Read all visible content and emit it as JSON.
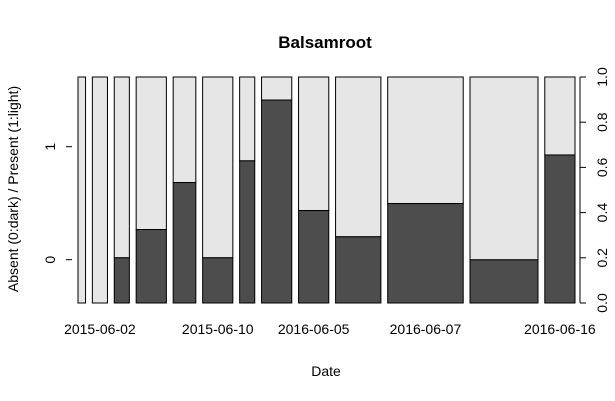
{
  "chart_data": {
    "type": "bar",
    "subtype": "spineplot",
    "title": "Balsamroot",
    "xlabel": "Date",
    "ylabel": "Absent (0:dark) / Present (1:light)",
    "x_tick_labels": [
      "2015-06-02",
      "2015-06-10",
      "2016-06-05",
      "2016-06-07",
      "2016-06-16"
    ],
    "y_left_ticks": [
      "0",
      "1"
    ],
    "y_right_ticks": [
      "0.0",
      "0.2",
      "0.4",
      "0.6",
      "0.8",
      "1.0"
    ],
    "ylim": [
      0,
      1
    ],
    "colors": {
      "absent": "#4d4d4d",
      "present": "#e6e6e6",
      "border": "#000000"
    },
    "bars": [
      {
        "width": 1,
        "absent_fraction": 0.0
      },
      {
        "width": 2,
        "absent_fraction": 0.0
      },
      {
        "width": 2,
        "absent_fraction": 0.2
      },
      {
        "width": 4,
        "absent_fraction": 0.325
      },
      {
        "width": 3,
        "absent_fraction": 0.533
      },
      {
        "width": 4,
        "absent_fraction": 0.2
      },
      {
        "width": 2,
        "absent_fraction": 0.629
      },
      {
        "width": 4,
        "absent_fraction": 0.898
      },
      {
        "width": 4,
        "absent_fraction": 0.409
      },
      {
        "width": 6,
        "absent_fraction": 0.293
      },
      {
        "width": 10,
        "absent_fraction": 0.44
      },
      {
        "width": 9,
        "absent_fraction": 0.191
      },
      {
        "width": 4,
        "absent_fraction": 0.655
      }
    ],
    "tick_label_bars": [
      1,
      5,
      8,
      10,
      12
    ]
  }
}
